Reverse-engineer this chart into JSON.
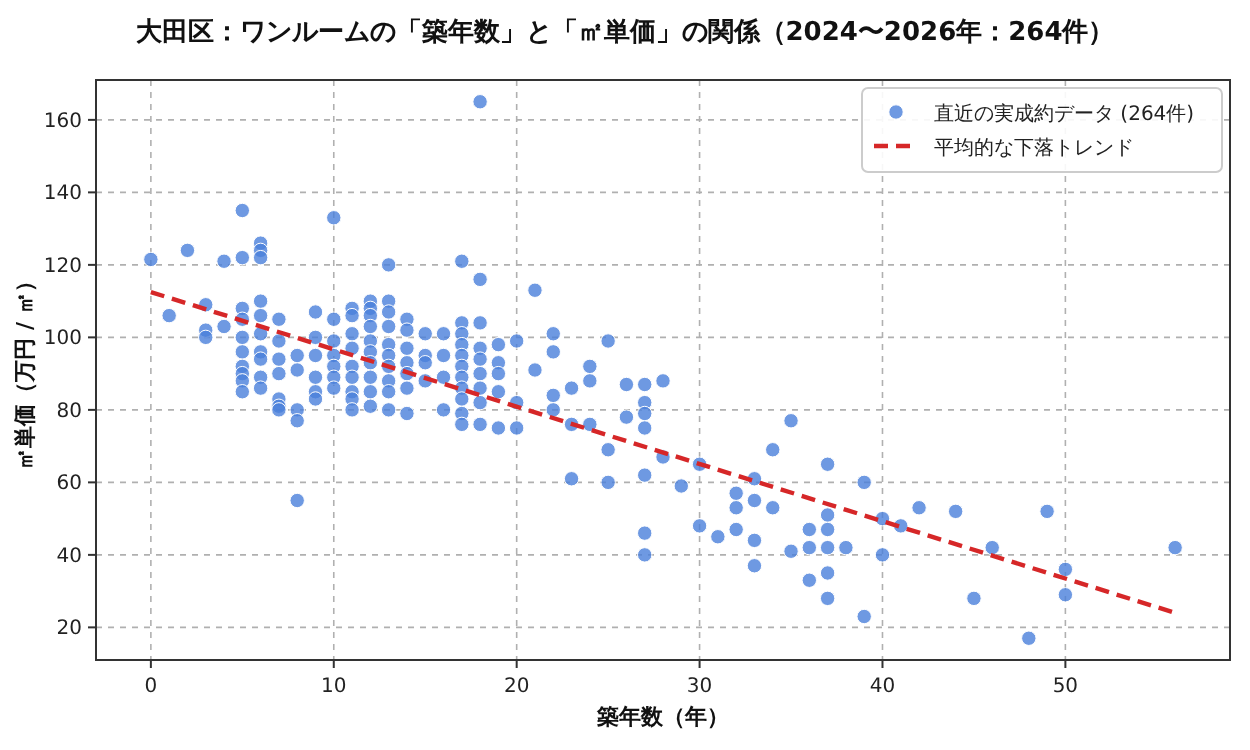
{
  "chart_data": {
    "type": "scatter",
    "title": "大田区：ワンルームの「築年数」と「㎡単価」の関係（2024〜2026年：264件）",
    "xlabel": "築年数（年）",
    "ylabel": "㎡単価（万円 / ㎡）",
    "xlim": [
      -3,
      59
    ],
    "ylim": [
      11,
      171
    ],
    "xticks": [
      0,
      10,
      20,
      30,
      40,
      50
    ],
    "yticks": [
      20,
      40,
      60,
      80,
      100,
      120,
      140,
      160
    ],
    "grid": true,
    "legend": "top right",
    "marker": "circle",
    "series": [
      {
        "name": "直近の実成約データ (264件)",
        "color": "#4a7fdb",
        "x": [
          0,
          1,
          2,
          3,
          3,
          3,
          4,
          4,
          5,
          5,
          5,
          5,
          5,
          5,
          5,
          5,
          5,
          5,
          6,
          6,
          6,
          6,
          6,
          6,
          6,
          6,
          6,
          6,
          7,
          7,
          7,
          7,
          7,
          7,
          7,
          8,
          8,
          8,
          8,
          8,
          9,
          9,
          9,
          9,
          9,
          9,
          10,
          10,
          10,
          10,
          10,
          10,
          10,
          11,
          11,
          11,
          11,
          11,
          11,
          11,
          11,
          11,
          12,
          12,
          12,
          12,
          12,
          12,
          12,
          12,
          12,
          12,
          13,
          13,
          13,
          13,
          13,
          13,
          13,
          13,
          13,
          13,
          14,
          14,
          14,
          14,
          14,
          14,
          14,
          15,
          15,
          15,
          15,
          16,
          16,
          16,
          16,
          17,
          17,
          17,
          17,
          17,
          17,
          17,
          17,
          17,
          17,
          17,
          18,
          18,
          18,
          18,
          18,
          18,
          18,
          18,
          18,
          19,
          19,
          19,
          19,
          19,
          20,
          20,
          20,
          21,
          21,
          22,
          22,
          22,
          22,
          23,
          23,
          23,
          24,
          24,
          24,
          25,
          25,
          25,
          26,
          26,
          27,
          27,
          27,
          27,
          27,
          27,
          27,
          28,
          28,
          29,
          30,
          30,
          31,
          32,
          32,
          32,
          33,
          33,
          33,
          33,
          34,
          34,
          35,
          35,
          36,
          36,
          36,
          37,
          37,
          37,
          37,
          37,
          37,
          38,
          39,
          39,
          40,
          40,
          41,
          42,
          44,
          45,
          46,
          48,
          49,
          50,
          50,
          56
        ],
        "values": [
          121.5,
          106,
          124,
          109,
          102,
          100,
          121,
          103,
          135,
          122,
          108,
          105,
          100,
          96,
          92,
          90,
          88,
          85,
          126,
          124,
          122,
          110,
          106,
          101,
          96,
          94,
          89,
          86,
          105,
          99,
          94,
          90,
          83,
          81,
          80,
          95,
          91,
          80,
          77,
          55,
          107,
          100,
          95,
          89,
          85,
          83,
          133,
          105,
          99,
          95,
          92,
          89,
          86,
          108,
          106,
          101,
          97,
          92,
          89,
          85,
          83,
          80,
          110,
          108,
          106,
          103,
          99,
          96,
          93,
          89,
          85,
          81,
          120,
          110,
          107,
          103,
          98,
          95,
          92,
          88,
          85,
          80,
          105,
          102,
          97,
          93,
          90,
          86,
          79,
          101,
          95,
          93,
          88,
          101,
          95,
          89,
          80,
          121,
          104,
          101,
          98,
          95,
          92,
          89,
          86,
          83,
          79,
          76,
          165,
          116,
          104,
          97,
          94,
          90,
          86,
          82,
          76,
          98,
          93,
          90,
          85,
          75,
          99,
          82,
          75,
          113,
          91,
          101,
          96,
          84,
          80,
          86,
          76,
          61,
          92,
          88,
          76,
          99,
          69,
          60,
          87,
          78,
          87,
          82,
          79,
          75,
          62,
          46,
          40,
          88,
          67,
          59,
          65,
          48,
          45,
          57,
          53,
          47,
          61,
          55,
          44,
          37,
          69,
          53,
          77,
          41,
          47,
          42,
          33,
          65,
          51,
          47,
          42,
          35,
          28,
          42,
          60,
          23,
          50,
          40,
          48,
          53,
          52,
          28,
          42,
          17,
          52,
          36,
          29,
          42
        ]
      },
      {
        "name": "平均的な下落トレンド",
        "type": "line",
        "color": "#d62728",
        "line_style": "dashed",
        "marker": "none",
        "x": [
          0,
          56
        ],
        "values": [
          112.5,
          24
        ]
      }
    ]
  }
}
